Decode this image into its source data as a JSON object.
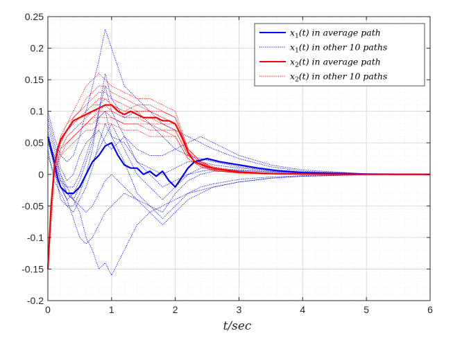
{
  "chart_data": {
    "type": "line",
    "xlabel": "t/sec",
    "ylabel": "",
    "xlim": [
      0,
      6
    ],
    "ylim": [
      -0.2,
      0.25
    ],
    "x_ticks": [
      "0",
      "1",
      "2",
      "3",
      "4",
      "5",
      "6"
    ],
    "y_ticks": [
      "-0.2",
      "-0.15",
      "-0.1",
      "-0.05",
      "0",
      "0.05",
      "0.1",
      "0.15",
      "0.2",
      "0.25"
    ],
    "grid": true,
    "minor_grid": true,
    "legend_position": "top-right",
    "colors": {
      "x1": "#0000ff",
      "x2": "#ff0000"
    },
    "legend": [
      {
        "label": "x1(t) in average path",
        "style": "solid",
        "color": "#0000ff"
      },
      {
        "label": "x1(t) in other 10 paths",
        "style": "dotted",
        "color": "#0000ff"
      },
      {
        "label": "x2(t) in average path",
        "style": "solid",
        "color": "#ff0000"
      },
      {
        "label": "x2(t) in other 10 paths",
        "style": "dotted",
        "color": "#ff0000"
      }
    ],
    "series": [
      {
        "name": "x1(t) in average path",
        "style": "solid",
        "color": "#0000ff",
        "x": [
          0,
          0.05,
          0.1,
          0.15,
          0.2,
          0.3,
          0.4,
          0.5,
          0.6,
          0.7,
          0.8,
          0.9,
          1.0,
          1.1,
          1.2,
          1.3,
          1.4,
          1.5,
          1.6,
          1.7,
          1.8,
          1.9,
          2.0,
          2.1,
          2.2,
          2.3,
          2.5,
          2.7,
          3.0,
          3.3,
          3.6,
          4.0,
          4.5,
          5.0,
          5.5,
          6.0
        ],
        "y": [
          0.06,
          0.04,
          0.02,
          -0.005,
          -0.02,
          -0.03,
          -0.03,
          -0.02,
          0.0,
          0.02,
          0.03,
          0.045,
          0.05,
          0.03,
          0.015,
          0.01,
          0.01,
          0.0,
          0.005,
          -0.003,
          0.005,
          -0.01,
          -0.02,
          -0.005,
          0.01,
          0.02,
          0.025,
          0.02,
          0.015,
          0.01,
          0.006,
          0.003,
          0.0015,
          0.0005,
          0.0002,
          0.0
        ]
      },
      {
        "name": "x2(t) in average path",
        "style": "solid",
        "color": "#ff0000",
        "x": [
          0,
          0.05,
          0.1,
          0.15,
          0.2,
          0.3,
          0.4,
          0.5,
          0.6,
          0.7,
          0.8,
          0.9,
          1.0,
          1.1,
          1.2,
          1.3,
          1.4,
          1.5,
          1.6,
          1.7,
          1.8,
          1.9,
          2.0,
          2.1,
          2.2,
          2.3,
          2.5,
          2.7,
          3.0,
          3.3,
          3.6,
          4.0,
          4.5,
          5.0,
          5.5,
          6.0
        ],
        "y": [
          -0.15,
          -0.05,
          0.01,
          0.04,
          0.055,
          0.07,
          0.085,
          0.09,
          0.095,
          0.1,
          0.105,
          0.11,
          0.11,
          0.1,
          0.095,
          0.1,
          0.095,
          0.09,
          0.09,
          0.09,
          0.085,
          0.085,
          0.08,
          0.06,
          0.035,
          0.02,
          0.012,
          0.008,
          0.004,
          0.002,
          0.001,
          0.0005,
          0.0002,
          0.0001,
          0.0,
          0.0
        ]
      },
      {
        "name": "x1(t) in other 10 paths",
        "style": "dotted",
        "color": "#0000ff",
        "x": [
          0,
          0.1,
          0.2,
          0.3,
          0.4,
          0.5,
          0.6,
          0.7,
          0.8,
          0.9,
          1.0,
          1.2,
          1.4,
          1.6,
          1.8,
          2.0,
          2.2,
          2.4,
          2.6,
          3.0,
          3.5,
          4.0,
          5.0,
          6.0
        ],
        "paths": [
          [
            0.1,
            0.06,
            0.03,
            0.02,
            0.03,
            0.06,
            0.1,
            0.14,
            0.18,
            0.23,
            0.2,
            0.14,
            0.12,
            0.1,
            0.08,
            0.07,
            0.06,
            0.05,
            0.04,
            0.025,
            0.012,
            0.005,
            0.001,
            0.0
          ],
          [
            0.08,
            0.04,
            0.0,
            -0.02,
            -0.04,
            -0.06,
            -0.1,
            -0.12,
            -0.15,
            -0.14,
            -0.16,
            -0.12,
            -0.08,
            -0.06,
            -0.05,
            -0.04,
            -0.03,
            -0.025,
            -0.02,
            -0.012,
            -0.006,
            -0.003,
            -0.0005,
            0.0
          ],
          [
            0.05,
            0.03,
            0.0,
            -0.03,
            -0.04,
            -0.02,
            0.0,
            0.04,
            0.1,
            0.16,
            0.12,
            0.09,
            0.1,
            0.08,
            0.06,
            0.04,
            0.03,
            0.025,
            0.02,
            0.012,
            0.006,
            0.003,
            0.0005,
            0.0
          ],
          [
            0.07,
            0.02,
            -0.02,
            -0.04,
            -0.03,
            -0.01,
            0.02,
            0.05,
            0.1,
            0.14,
            0.1,
            0.06,
            0.02,
            0.0,
            -0.02,
            -0.01,
            0.0,
            0.005,
            0.008,
            0.006,
            0.004,
            0.002,
            0.0005,
            0.0
          ],
          [
            0.06,
            0.01,
            -0.04,
            -0.05,
            -0.06,
            -0.04,
            -0.02,
            0.01,
            0.05,
            0.08,
            0.06,
            0.02,
            -0.03,
            -0.05,
            -0.07,
            -0.05,
            -0.03,
            -0.02,
            -0.015,
            -0.008,
            -0.004,
            -0.002,
            -0.0005,
            0.0
          ],
          [
            0.04,
            -0.01,
            -0.03,
            -0.05,
            -0.05,
            -0.03,
            0.0,
            0.02,
            0.04,
            0.06,
            0.08,
            0.04,
            0.0,
            -0.02,
            -0.04,
            -0.02,
            0.0,
            0.01,
            0.01,
            0.007,
            0.004,
            0.002,
            0.0005,
            0.0
          ],
          [
            0.03,
            0.0,
            -0.02,
            -0.04,
            -0.07,
            -0.1,
            -0.11,
            -0.1,
            -0.08,
            -0.06,
            -0.05,
            -0.03,
            -0.04,
            -0.06,
            -0.08,
            -0.06,
            -0.04,
            -0.03,
            -0.02,
            -0.012,
            -0.006,
            -0.003,
            -0.0005,
            0.0
          ],
          [
            0.09,
            0.05,
            0.01,
            -0.01,
            0.0,
            0.03,
            0.05,
            0.06,
            0.07,
            0.05,
            0.04,
            0.06,
            0.04,
            0.03,
            0.03,
            0.04,
            0.05,
            0.06,
            0.05,
            0.03,
            0.015,
            0.007,
            0.001,
            0.0
          ],
          [
            0.05,
            0.02,
            -0.01,
            -0.02,
            -0.02,
            0.0,
            0.03,
            0.06,
            0.09,
            0.1,
            0.06,
            0.05,
            0.02,
            0.01,
            0.0,
            0.01,
            0.02,
            0.02,
            0.015,
            0.01,
            0.005,
            0.002,
            0.0005,
            0.0
          ],
          [
            0.06,
            0.03,
            -0.01,
            -0.03,
            -0.04,
            -0.05,
            -0.06,
            -0.05,
            -0.03,
            -0.01,
            0.0,
            -0.02,
            -0.04,
            -0.05,
            -0.06,
            -0.03,
            -0.01,
            0.0,
            0.005,
            0.004,
            0.002,
            0.001,
            0.0,
            0.0
          ]
        ]
      },
      {
        "name": "x2(t) in other 10 paths",
        "style": "dotted",
        "color": "#ff0000",
        "x": [
          0,
          0.1,
          0.2,
          0.3,
          0.4,
          0.5,
          0.6,
          0.7,
          0.8,
          0.9,
          1.0,
          1.2,
          1.4,
          1.6,
          1.8,
          2.0,
          2.2,
          2.4,
          2.6,
          3.0,
          3.5,
          4.0,
          5.0,
          6.0
        ],
        "paths": [
          [
            -0.15,
            0.01,
            0.06,
            0.08,
            0.1,
            0.12,
            0.14,
            0.15,
            0.16,
            0.15,
            0.14,
            0.13,
            0.12,
            0.12,
            0.11,
            0.1,
            0.04,
            0.02,
            0.012,
            0.005,
            0.002,
            0.001,
            0.0,
            0.0
          ],
          [
            -0.15,
            0.0,
            0.04,
            0.06,
            0.07,
            0.08,
            0.09,
            0.1,
            0.1,
            0.11,
            0.1,
            0.09,
            0.09,
            0.08,
            0.08,
            0.07,
            0.03,
            0.015,
            0.008,
            0.003,
            0.001,
            0.0005,
            0.0,
            0.0
          ],
          [
            -0.15,
            0.02,
            0.05,
            0.07,
            0.09,
            0.1,
            0.11,
            0.12,
            0.13,
            0.13,
            0.12,
            0.11,
            0.1,
            0.1,
            0.09,
            0.08,
            0.035,
            0.018,
            0.01,
            0.004,
            0.0015,
            0.0005,
            0.0,
            0.0
          ],
          [
            -0.15,
            0.0,
            0.03,
            0.05,
            0.06,
            0.07,
            0.08,
            0.08,
            0.09,
            0.09,
            0.09,
            0.08,
            0.08,
            0.07,
            0.07,
            0.06,
            0.025,
            0.012,
            0.006,
            0.002,
            0.001,
            0.0003,
            0.0,
            0.0
          ],
          [
            -0.15,
            0.01,
            0.05,
            0.07,
            0.08,
            0.09,
            0.1,
            0.11,
            0.12,
            0.12,
            0.11,
            0.1,
            0.11,
            0.1,
            0.1,
            0.09,
            0.04,
            0.02,
            0.01,
            0.004,
            0.0015,
            0.0005,
            0.0,
            0.0
          ],
          [
            -0.15,
            0.0,
            0.04,
            0.06,
            0.07,
            0.08,
            0.08,
            0.09,
            0.1,
            0.1,
            0.1,
            0.09,
            0.09,
            0.09,
            0.08,
            0.08,
            0.035,
            0.017,
            0.009,
            0.003,
            0.001,
            0.0004,
            0.0,
            0.0
          ],
          [
            -0.15,
            0.02,
            0.06,
            0.08,
            0.09,
            0.1,
            0.12,
            0.13,
            0.14,
            0.14,
            0.13,
            0.12,
            0.11,
            0.11,
            0.1,
            0.09,
            0.04,
            0.02,
            0.01,
            0.004,
            0.0015,
            0.0005,
            0.0,
            0.0
          ],
          [
            -0.15,
            0.0,
            0.03,
            0.04,
            0.05,
            0.06,
            0.07,
            0.07,
            0.08,
            0.08,
            0.08,
            0.07,
            0.07,
            0.06,
            0.06,
            0.06,
            0.025,
            0.012,
            0.006,
            0.002,
            0.0008,
            0.0003,
            0.0,
            0.0
          ],
          [
            -0.15,
            0.01,
            0.05,
            0.07,
            0.08,
            0.09,
            0.1,
            0.11,
            0.11,
            0.12,
            0.11,
            0.1,
            0.1,
            0.1,
            0.09,
            0.08,
            0.035,
            0.018,
            0.009,
            0.003,
            0.001,
            0.0004,
            0.0,
            0.0
          ],
          [
            -0.15,
            0.0,
            0.04,
            0.05,
            0.06,
            0.07,
            0.08,
            0.09,
            0.09,
            0.1,
            0.09,
            0.08,
            0.08,
            0.08,
            0.07,
            0.07,
            0.03,
            0.014,
            0.007,
            0.0025,
            0.001,
            0.0003,
            0.0,
            0.0
          ]
        ]
      }
    ]
  }
}
